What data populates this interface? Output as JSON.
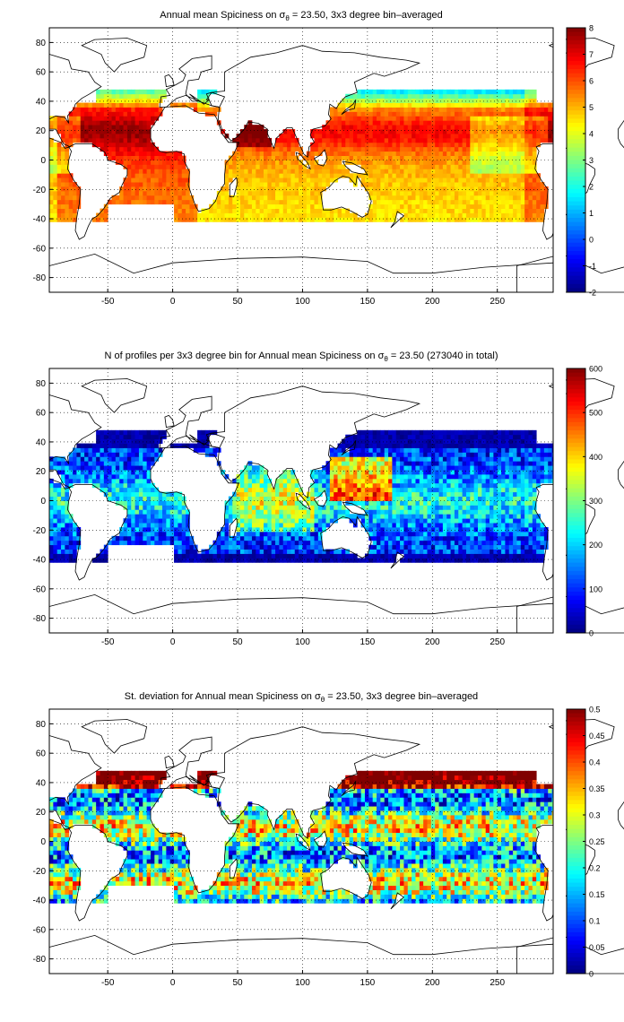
{
  "panels": [
    {
      "title_prefix": "Annual mean Spiciness on ",
      "title_sigma": "σ",
      "title_sub": "θ",
      "title_suffix": " = 23.50, 3x3 degree bin–averaged",
      "colorbar_ticks": [
        "8",
        "7",
        "6",
        "5",
        "4",
        "3",
        "2",
        "1",
        "0",
        "-1",
        "-2"
      ],
      "colorbar_range": [
        -2,
        8
      ]
    },
    {
      "title_prefix": "N of profiles per 3x3 degree bin for Annual mean Spiciness on ",
      "title_sigma": "σ",
      "title_sub": "θ",
      "title_suffix": " = 23.50 (273040 in total)",
      "colorbar_ticks": [
        "600",
        "500",
        "400",
        "300",
        "200",
        "100",
        "0"
      ],
      "colorbar_range": [
        0,
        600
      ]
    },
    {
      "title_prefix": "St. deviation for Annual mean Spiciness on ",
      "title_sigma": "σ",
      "title_sub": "θ",
      "title_suffix": " = 23.50, 3x3 degree bin–averaged",
      "colorbar_ticks": [
        "0.5",
        "0.45",
        "0.4",
        "0.35",
        "0.3",
        "0.25",
        "0.2",
        "0.15",
        "0.1",
        "0.05",
        "0"
      ],
      "colorbar_range": [
        0,
        0.5
      ]
    }
  ],
  "x_ticks": [
    "-50",
    "0",
    "50",
    "100",
    "150",
    "200",
    "250"
  ],
  "y_ticks": [
    "80",
    "60",
    "40",
    "20",
    "0",
    "-20",
    "-40",
    "-60",
    "-80"
  ],
  "x_range": [
    -95,
    293
  ],
  "y_range": [
    -90,
    90
  ],
  "grid": "dotted",
  "colormap": "jet",
  "colors": {
    "coast": "#000000",
    "grid": "#000000",
    "background": "#ffffff"
  }
}
